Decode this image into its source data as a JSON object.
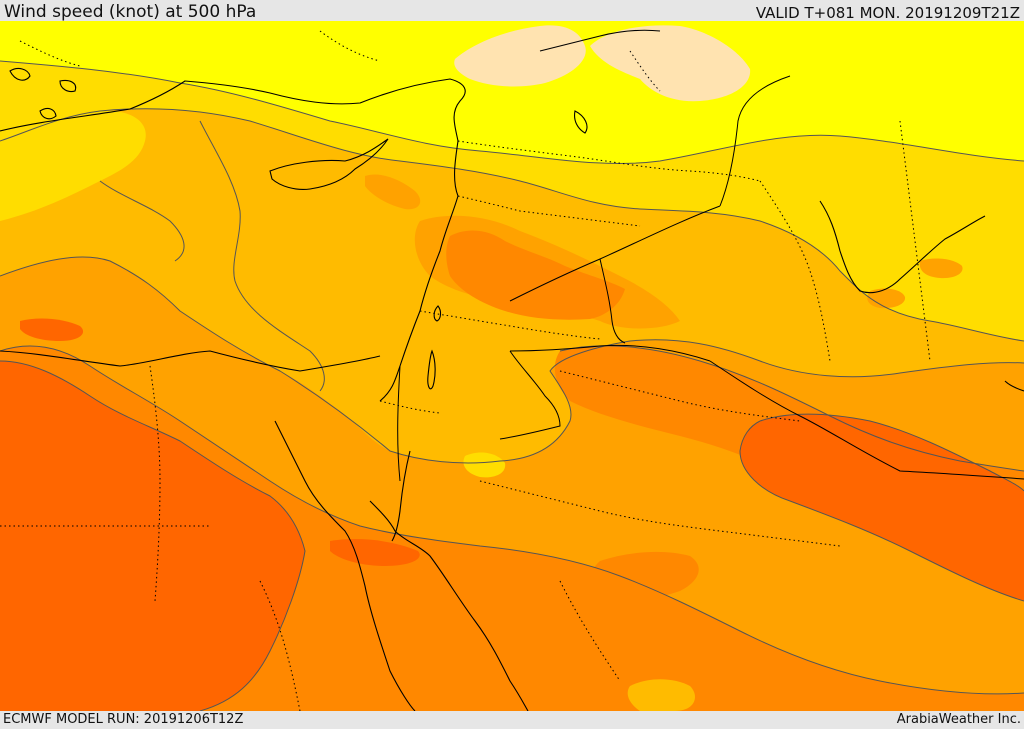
{
  "header": {
    "title": "Wind speed (knot) at 500 hPa",
    "valid_time": "VALID T+081 MON. 20191209T21Z"
  },
  "footer": {
    "model_run": "ECMWF MODEL RUN: 20191206T12Z",
    "credit": "ArabiaWeather Inc."
  },
  "map": {
    "colors": {
      "band_1": "#ffe3b0",
      "band_2": "#ffff00",
      "band_3": "#ffdd00",
      "band_4": "#ffbb00",
      "band_5": "#ffa200",
      "band_6": "#ff8800",
      "band_7": "#ff6600",
      "contour_line": "#555555",
      "coastline": "#000000",
      "border": "#000000"
    }
  }
}
